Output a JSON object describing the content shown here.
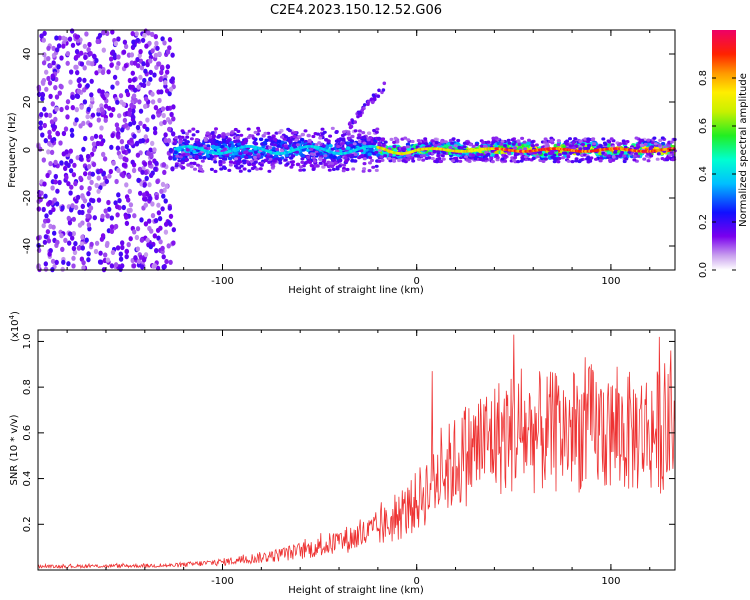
{
  "figure": {
    "title": "C2E4.2023.150.12.52.G06"
  },
  "chart_data": [
    {
      "type": "heatmap",
      "xlabel": "Height of straight line (km)",
      "ylabel": "Frequency (Hz)",
      "xlim": [
        -195,
        133
      ],
      "ylim": [
        -50,
        50
      ],
      "xticks": [
        -100,
        0,
        100
      ],
      "xtick_labels": [
        "-100",
        "0",
        "100"
      ],
      "yticks": [
        -40,
        -20,
        0,
        20,
        40
      ],
      "ytick_labels": [
        "-40",
        "-20",
        "0",
        "20",
        "40"
      ],
      "colorbar": {
        "label": "Normalized spectral amplitude",
        "range": [
          0.0,
          1.0
        ],
        "ticks": [
          0.0,
          0.2,
          0.4,
          0.6,
          0.8
        ],
        "tick_labels": [
          "0.0",
          "0.2",
          "0.4",
          "0.6",
          "0.8"
        ],
        "colormap": "rainbow (white, violet, blue, cyan, green, yellow, orange, red, magenta)"
      },
      "ridge": {
        "description_frequency_hz": 0,
        "segments": [
          {
            "x_range": [
              -195,
              -125
            ],
            "amplitude": 0.15,
            "spread_hz": 50
          },
          {
            "x_range": [
              -125,
              -20
            ],
            "amplitude": 0.4,
            "spread_hz": 6
          },
          {
            "x_range": [
              -20,
              40
            ],
            "amplitude": 0.75,
            "spread_hz": 3
          },
          {
            "x_range": [
              40,
              133
            ],
            "amplitude": 0.9,
            "spread_hz": 3
          }
        ],
        "secondary_feature": {
          "x_range": [
            -35,
            -15
          ],
          "frequency_range_hz": [
            10,
            28
          ]
        }
      },
      "grid": false
    },
    {
      "type": "line",
      "xlabel": "Height of straight line (km)",
      "ylabel": "SNR (10 * v/v)",
      "y_multiplier_label": "(x10",
      "y_multiplier_exp": "4",
      "y_multiplier_close": ")",
      "xlim": [
        -195,
        133
      ],
      "ylim": [
        0,
        1.05
      ],
      "xticks": [
        -100,
        0,
        100
      ],
      "xtick_labels": [
        "-100",
        "0",
        "100"
      ],
      "yticks": [
        0.2,
        0.4,
        0.6,
        0.8,
        1.0
      ],
      "ytick_labels": [
        "0.2",
        "0.4",
        "0.6",
        "0.8",
        "1.0"
      ],
      "color": "#ee3333",
      "grid": false,
      "series": [
        {
          "envelope_x": [
            -195,
            -150,
            -125,
            -100,
            -75,
            -50,
            -25,
            -10,
            0,
            10,
            20,
            30,
            40,
            50,
            60,
            70,
            80,
            90,
            100,
            110,
            120,
            133
          ],
          "envelope_y": [
            0.015,
            0.018,
            0.02,
            0.035,
            0.06,
            0.1,
            0.16,
            0.22,
            0.3,
            0.4,
            0.47,
            0.53,
            0.58,
            0.6,
            0.6,
            0.6,
            0.61,
            0.62,
            0.6,
            0.6,
            0.61,
            0.6
          ],
          "peaks": [
            {
              "x": 8,
              "y": 0.87
            },
            {
              "x": 50,
              "y": 1.03
            },
            {
              "x": 125,
              "y": 1.02
            },
            {
              "x": 72,
              "y": 0.85
            },
            {
              "x": 90,
              "y": 0.9
            }
          ]
        }
      ]
    }
  ]
}
